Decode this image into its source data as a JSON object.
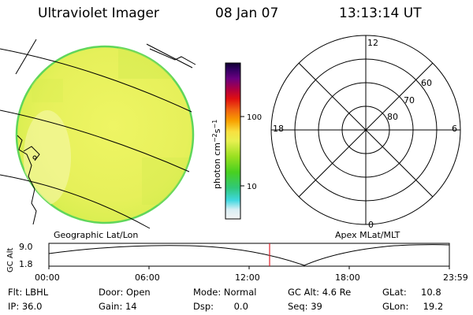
{
  "header": {
    "title": "Ultraviolet Imager",
    "date": "08 Jan 07",
    "time": "13:13:14 UT"
  },
  "colorbar": {
    "label_html": "photon cm<tspan baseline-shift='super' font-size='8'>−2</tspan>s<tspan baseline-shift='super' font-size='8'>−1</tspan>",
    "tick_100": "100",
    "tick_10": "10"
  },
  "polar": {
    "mlt_12": "12",
    "mlt_18": "18",
    "mlt_6": "6",
    "mlt_0": "0",
    "lat_60": "60",
    "lat_70": "70",
    "lat_80": "80"
  },
  "panel_labels": {
    "geo": "Geographic Lat/Lon",
    "apex": "Apex MLat/MLT"
  },
  "altitude_plot": {
    "ylabel": "GC Alt",
    "y_top": "9.0",
    "y_bottom": "1.8",
    "x_ticks": [
      "00:00",
      "06:00",
      "12:00",
      "18:00",
      "23:59"
    ],
    "current_time_hours": 13.22
  },
  "info": {
    "filter": "Flt: LBHL",
    "ip": "IP: 36.0",
    "door": "Door: Open",
    "gain": "Gain: 14",
    "mode": "Mode: Normal",
    "dsp": "Dsp:       0.0",
    "gc_alt": "GC Alt: 4.6 Re",
    "seq": "Seq: 39",
    "glat": "GLat:     10.8",
    "glon": "GLon:     19.2"
  },
  "colors": {
    "disk": "#e8f25c",
    "disk_edge": "#5fd65a",
    "marker": "#e0202a"
  }
}
